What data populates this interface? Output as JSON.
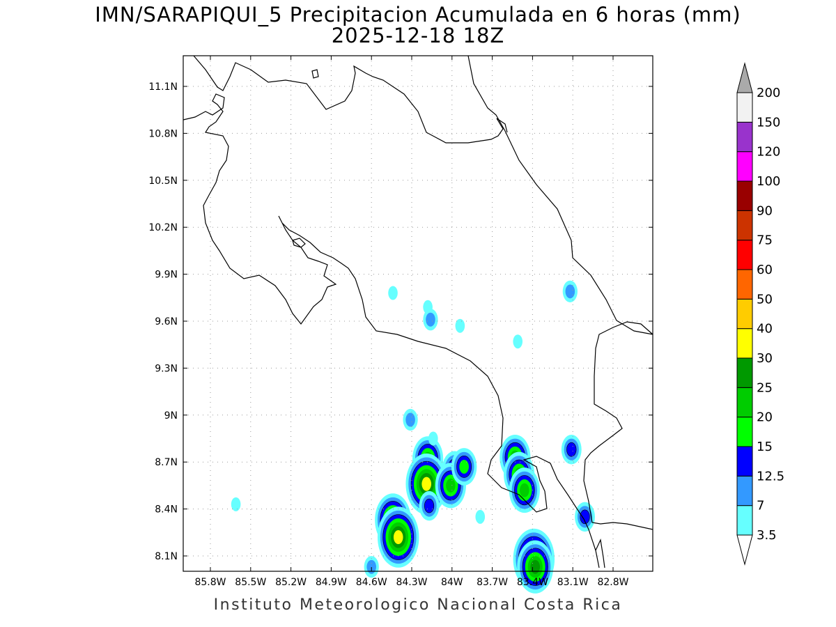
{
  "title": {
    "line1": "IMN/SARAPIQUI_5 Precipitacion Acumulada en 6 horas (mm)",
    "line2": "2025-12-18 18Z"
  },
  "footer": "Instituto Meteorologico Nacional Costa Rica",
  "map": {
    "lat_labels": [
      "11.1N",
      "10.8N",
      "10.5N",
      "10.2N",
      "9.9N",
      "9.6N",
      "9.3N",
      "9N",
      "8.7N",
      "8.4N",
      "8.1N"
    ],
    "lon_labels": [
      "85.8W",
      "85.5W",
      "85.2W",
      "84.9W",
      "84.6W",
      "84.3W",
      "84W",
      "83.7W",
      "83.4W",
      "83.1W",
      "82.8W"
    ],
    "lat_values": [
      11.1,
      10.8,
      10.5,
      10.2,
      9.9,
      9.6,
      9.3,
      9.0,
      8.7,
      8.4,
      8.1
    ],
    "lon_values": [
      -85.8,
      -85.5,
      -85.2,
      -84.9,
      -84.6,
      -84.3,
      -84.0,
      -83.7,
      -83.4,
      -83.1,
      -82.8
    ],
    "grid": "dotted"
  },
  "colorbar": {
    "labels": [
      "3.5",
      "7",
      "12.5",
      "15",
      "20",
      "25",
      "30",
      "40",
      "50",
      "60",
      "75",
      "90",
      "100",
      "120",
      "150",
      "200"
    ],
    "colors": [
      "#66ffff",
      "#3399ff",
      "#0000ff",
      "#00ff00",
      "#00cc00",
      "#009900",
      "#ffff00",
      "#ffcc00",
      "#ff6600",
      "#ff0000",
      "#cc3300",
      "#990000",
      "#ff00ff",
      "#9933cc",
      "#f2f2f2"
    ],
    "over_color": "#aaaaaa",
    "under_color": "#ffffff"
  },
  "rain_cells": [
    {
      "lon": -84.18,
      "lat": 8.72,
      "level": 4
    },
    {
      "lon": -84.19,
      "lat": 8.56,
      "level": 6
    },
    {
      "lon": -84.44,
      "lat": 8.33,
      "level": 5
    },
    {
      "lon": -84.4,
      "lat": 8.22,
      "level": 6
    },
    {
      "lon": -84.17,
      "lat": 8.42,
      "level": 2
    },
    {
      "lon": -83.98,
      "lat": 8.65,
      "level": 3
    },
    {
      "lon": -84.01,
      "lat": 8.55,
      "level": 4
    },
    {
      "lon": -83.91,
      "lat": 8.67,
      "level": 3
    },
    {
      "lon": -84.31,
      "lat": 8.97,
      "level": 1
    },
    {
      "lon": -83.53,
      "lat": 8.73,
      "level": 4
    },
    {
      "lon": -83.5,
      "lat": 8.62,
      "level": 4
    },
    {
      "lon": -83.46,
      "lat": 8.52,
      "level": 4
    },
    {
      "lon": -83.39,
      "lat": 8.08,
      "level": 6
    },
    {
      "lon": -83.38,
      "lat": 8.03,
      "level": 5
    },
    {
      "lon": -83.11,
      "lat": 8.78,
      "level": 2
    },
    {
      "lon": -83.01,
      "lat": 8.35,
      "level": 2
    },
    {
      "lon": -84.6,
      "lat": 8.03,
      "level": 1
    },
    {
      "lon": -85.61,
      "lat": 8.43,
      "level": 0
    },
    {
      "lon": -84.18,
      "lat": 9.69,
      "level": 0
    },
    {
      "lon": -84.16,
      "lat": 9.61,
      "level": 1
    },
    {
      "lon": -84.44,
      "lat": 9.78,
      "level": 0
    },
    {
      "lon": -83.94,
      "lat": 9.57,
      "level": 0
    },
    {
      "lon": -83.12,
      "lat": 9.79,
      "level": 1
    },
    {
      "lon": -83.51,
      "lat": 9.47,
      "level": 0
    },
    {
      "lon": -83.79,
      "lat": 8.35,
      "level": 0
    },
    {
      "lon": -84.14,
      "lat": 8.85,
      "level": 0
    }
  ]
}
